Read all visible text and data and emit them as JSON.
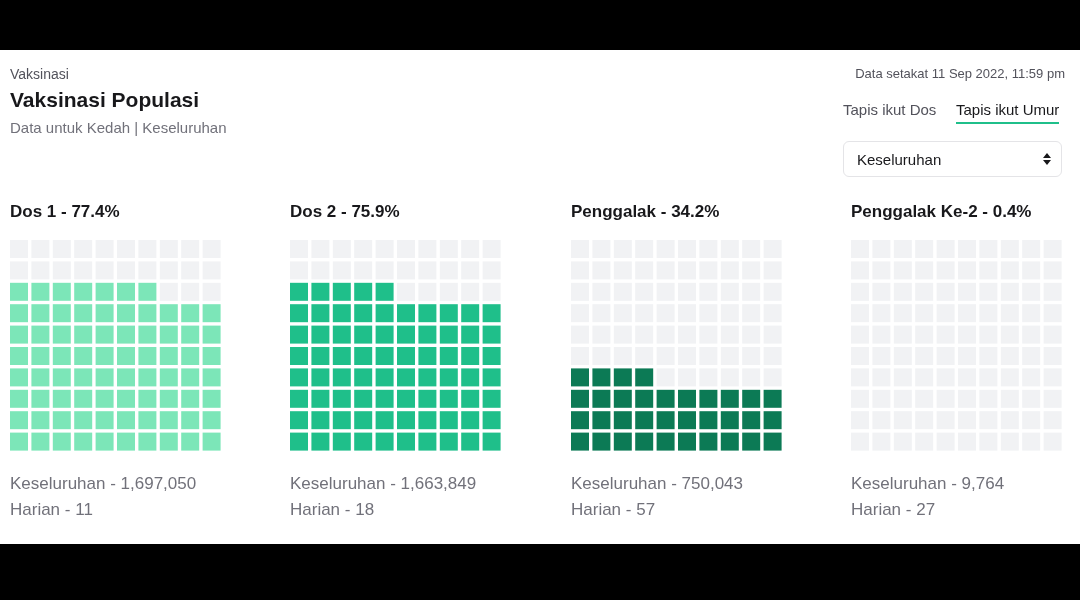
{
  "chart_data": [
    {
      "type": "other",
      "title": "Vaksinasi Populasi",
      "subtitle": "Data untuk Kedah | Keseluruhan",
      "annotations": [
        "Vaksinasi",
        "Data setakat 11 Sep 2022, 11:59 pm",
        "Tapis ikut Dos",
        "Tapis ikut Umur",
        "Keseluruhan"
      ]
    },
    {
      "type": "other",
      "title": "Dos 1 -",
      "values": [
        77.4
      ],
      "value_labels": [
        "77.4%"
      ],
      "color": "#7ce6b8",
      "annotations": [
        "Keseluruhan - 1,697,050",
        "Harian - 11"
      ]
    },
    {
      "type": "other",
      "title": "Dos 2 -",
      "values": [
        75.9
      ],
      "value_labels": [
        "75.9%"
      ],
      "color": "#1fbf8a",
      "annotations": [
        "Keseluruhan - 1,663,849",
        "Harian - 18"
      ]
    },
    {
      "type": "other",
      "title": "Penggalak -",
      "values": [
        34.2
      ],
      "value_labels": [
        "34.2%"
      ],
      "color": "#0c7a55",
      "annotations": [
        "Keseluruhan - 750,043",
        "Harian - 57"
      ]
    },
    {
      "type": "other",
      "title": "Penggalak Ke-2 -",
      "values": [
        0.4
      ],
      "value_labels": [
        "0.4%"
      ],
      "annotations": [
        "Keseluruhan - 9,764",
        "Harian - 27"
      ]
    }
  ]
}
